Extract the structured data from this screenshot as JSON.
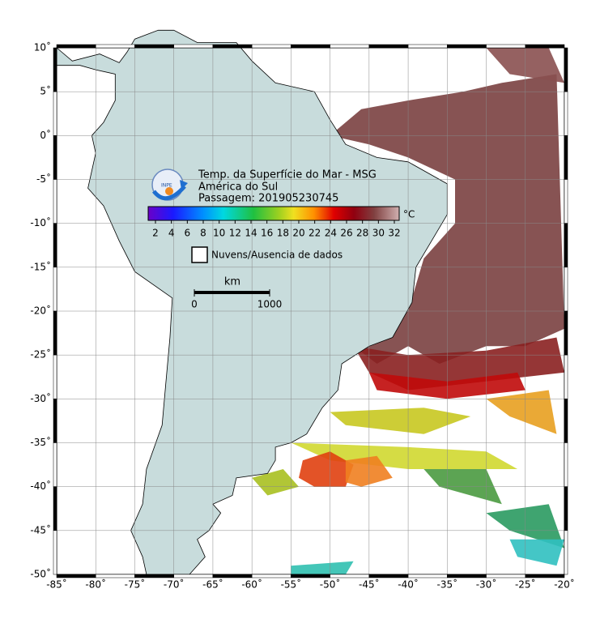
{
  "map": {
    "title": "Temp. da Superfície do Mar - MSG",
    "subtitle": "América do Sul",
    "pass": "Passagem: 201905230745",
    "colorbar": {
      "unit": "°C",
      "ticks": [
        2,
        4,
        6,
        8,
        10,
        12,
        14,
        16,
        18,
        20,
        22,
        24,
        26,
        28,
        30,
        32
      ]
    },
    "legend": "Nuvens/Ausencia de dados",
    "scale": {
      "unit": "km",
      "ticks": [
        0,
        1000
      ]
    },
    "lon_ticks": [
      {
        "value": -85,
        "label": "-85˚"
      },
      {
        "value": -80,
        "label": "-80˚"
      },
      {
        "value": -75,
        "label": "-75˚"
      },
      {
        "value": -70,
        "label": "-70˚"
      },
      {
        "value": -65,
        "label": "-65˚"
      },
      {
        "value": -60,
        "label": "-60˚"
      },
      {
        "value": -55,
        "label": "-55˚"
      },
      {
        "value": -50,
        "label": "-50˚"
      },
      {
        "value": -45,
        "label": "-45˚"
      },
      {
        "value": -40,
        "label": "-40˚"
      },
      {
        "value": -35,
        "label": "-35˚"
      },
      {
        "value": -30,
        "label": "-30˚"
      },
      {
        "value": -25,
        "label": "-25˚"
      },
      {
        "value": -20,
        "label": "-20˚"
      }
    ],
    "lat_ticks": [
      {
        "value": 10,
        "label": "10˚"
      },
      {
        "value": 5,
        "label": "5˚"
      },
      {
        "value": 0,
        "label": "0˚"
      },
      {
        "value": -5,
        "label": "-5˚"
      },
      {
        "value": -10,
        "label": "-10˚"
      },
      {
        "value": -15,
        "label": "-15˚"
      },
      {
        "value": -20,
        "label": "-20˚"
      },
      {
        "value": -25,
        "label": "-25˚"
      },
      {
        "value": -30,
        "label": "-30˚"
      },
      {
        "value": -35,
        "label": "-35˚"
      },
      {
        "value": -40,
        "label": "-40˚"
      },
      {
        "value": -45,
        "label": "-45˚"
      },
      {
        "value": -50,
        "label": "-50˚"
      }
    ]
  }
}
